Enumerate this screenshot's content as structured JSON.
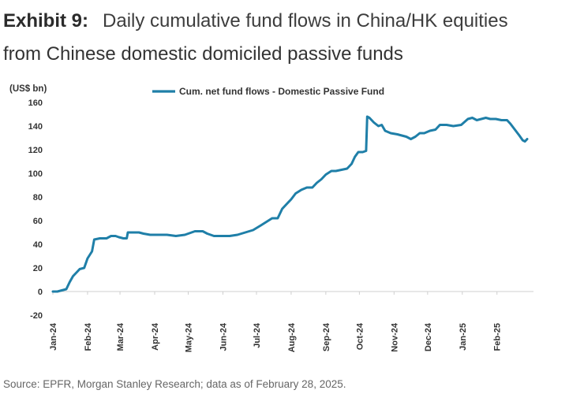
{
  "header": {
    "exhibit_label": "Exhibit 9:",
    "title_line1": "Daily cumulative fund flows in China/HK equities",
    "title_line2": "from Chinese domestic domiciled passive funds"
  },
  "source_note": "Source: EPFR, Morgan Stanley Research; data as of February 28, 2025.",
  "colors": {
    "series": "#1f7fa8",
    "text": "#3a3a3a",
    "axis": "#cfcfcf"
  },
  "chart_data": {
    "type": "line",
    "ylabel": "(US$ bn)",
    "ylim": [
      -20,
      160
    ],
    "yticks": [
      -20,
      0,
      20,
      40,
      60,
      80,
      100,
      120,
      140,
      160
    ],
    "grid": false,
    "legend_position": "top",
    "x_tick_labels": [
      "Jan-24",
      "Feb-24",
      "Mar-24",
      "Apr-24",
      "May-24",
      "Jun-24",
      "Jul-24",
      "Aug-24",
      "Sep-24",
      "Oct-24",
      "Nov-24",
      "Dec-24",
      "Jan-25",
      "Feb-25"
    ],
    "series": [
      {
        "name": "Cum. net fund flows - Domestic Passive Fund",
        "points": [
          [
            "2024-01-01",
            0
          ],
          [
            "2024-01-05",
            0
          ],
          [
            "2024-01-09",
            1
          ],
          [
            "2024-01-13",
            2
          ],
          [
            "2024-01-16",
            8
          ],
          [
            "2024-01-19",
            13
          ],
          [
            "2024-01-22",
            16
          ],
          [
            "2024-01-25",
            19
          ],
          [
            "2024-01-29",
            20
          ],
          [
            "2024-02-01",
            28
          ],
          [
            "2024-02-05",
            34
          ],
          [
            "2024-02-07",
            44
          ],
          [
            "2024-02-12",
            45
          ],
          [
            "2024-02-18",
            45
          ],
          [
            "2024-02-22",
            47
          ],
          [
            "2024-02-26",
            47
          ],
          [
            "2024-02-29",
            46
          ],
          [
            "2024-03-04",
            45
          ],
          [
            "2024-03-07",
            45
          ],
          [
            "2024-03-08",
            50
          ],
          [
            "2024-03-12",
            50
          ],
          [
            "2024-03-18",
            50
          ],
          [
            "2024-03-22",
            49
          ],
          [
            "2024-03-28",
            48
          ],
          [
            "2024-04-05",
            48
          ],
          [
            "2024-04-12",
            48
          ],
          [
            "2024-04-20",
            47
          ],
          [
            "2024-04-28",
            48
          ],
          [
            "2024-05-01",
            49
          ],
          [
            "2024-05-07",
            51
          ],
          [
            "2024-05-14",
            51
          ],
          [
            "2024-05-18",
            49
          ],
          [
            "2024-05-24",
            47
          ],
          [
            "2024-05-31",
            47
          ],
          [
            "2024-06-07",
            47
          ],
          [
            "2024-06-14",
            48
          ],
          [
            "2024-06-21",
            50
          ],
          [
            "2024-06-28",
            52
          ],
          [
            "2024-07-05",
            56
          ],
          [
            "2024-07-10",
            59
          ],
          [
            "2024-07-15",
            62
          ],
          [
            "2024-07-20",
            62
          ],
          [
            "2024-07-24",
            70
          ],
          [
            "2024-07-28",
            74
          ],
          [
            "2024-08-01",
            78
          ],
          [
            "2024-08-05",
            83
          ],
          [
            "2024-08-10",
            86
          ],
          [
            "2024-08-15",
            88
          ],
          [
            "2024-08-20",
            88
          ],
          [
            "2024-08-24",
            92
          ],
          [
            "2024-08-28",
            95
          ],
          [
            "2024-09-01",
            99
          ],
          [
            "2024-09-06",
            102
          ],
          [
            "2024-09-10",
            102
          ],
          [
            "2024-09-15",
            103
          ],
          [
            "2024-09-20",
            104
          ],
          [
            "2024-09-24",
            108
          ],
          [
            "2024-09-27",
            114
          ],
          [
            "2024-09-30",
            118
          ],
          [
            "2024-10-04",
            118
          ],
          [
            "2024-10-07",
            119
          ],
          [
            "2024-10-08",
            148
          ],
          [
            "2024-10-10",
            147
          ],
          [
            "2024-10-14",
            143
          ],
          [
            "2024-10-18",
            140
          ],
          [
            "2024-10-21",
            141
          ],
          [
            "2024-10-24",
            136
          ],
          [
            "2024-10-29",
            134
          ],
          [
            "2024-11-04",
            133
          ],
          [
            "2024-11-08",
            132
          ],
          [
            "2024-11-12",
            131
          ],
          [
            "2024-11-16",
            129
          ],
          [
            "2024-11-20",
            131
          ],
          [
            "2024-11-24",
            134
          ],
          [
            "2024-11-28",
            134
          ],
          [
            "2024-12-03",
            136
          ],
          [
            "2024-12-08",
            137
          ],
          [
            "2024-12-12",
            141
          ],
          [
            "2024-12-18",
            141
          ],
          [
            "2024-12-24",
            140
          ],
          [
            "2024-12-31",
            141
          ],
          [
            "2025-01-06",
            146
          ],
          [
            "2025-01-10",
            147
          ],
          [
            "2025-01-14",
            145
          ],
          [
            "2025-01-18",
            146
          ],
          [
            "2025-01-22",
            147
          ],
          [
            "2025-01-26",
            146
          ],
          [
            "2025-01-31",
            146
          ],
          [
            "2025-02-05",
            145
          ],
          [
            "2025-02-10",
            145
          ],
          [
            "2025-02-13",
            142
          ],
          [
            "2025-02-17",
            137
          ],
          [
            "2025-02-21",
            132
          ],
          [
            "2025-02-24",
            128
          ],
          [
            "2025-02-26",
            127
          ],
          [
            "2025-02-28",
            129
          ]
        ]
      }
    ]
  }
}
